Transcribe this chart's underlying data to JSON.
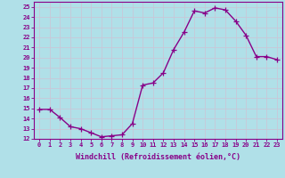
{
  "x": [
    0,
    1,
    2,
    3,
    4,
    5,
    6,
    7,
    8,
    9,
    10,
    11,
    12,
    13,
    14,
    15,
    16,
    17,
    18,
    19,
    20,
    21,
    22,
    23
  ],
  "y": [
    14.9,
    14.9,
    14.1,
    13.2,
    13.0,
    12.6,
    12.2,
    12.3,
    12.4,
    13.5,
    17.3,
    17.5,
    18.5,
    20.8,
    22.5,
    24.6,
    24.4,
    24.9,
    24.7,
    23.6,
    22.2,
    20.1,
    20.1,
    19.8
  ],
  "line_color": "#880088",
  "marker": "+",
  "marker_size": 4,
  "bg_color": "#b0e0e8",
  "grid_color": "#c8c8d8",
  "xlabel": "Windchill (Refroidissement éolien,°C)",
  "ylim": [
    12,
    25.5
  ],
  "xlim": [
    -0.5,
    23.5
  ],
  "yticks": [
    12,
    13,
    14,
    15,
    16,
    17,
    18,
    19,
    20,
    21,
    22,
    23,
    24,
    25
  ],
  "xticks": [
    0,
    1,
    2,
    3,
    4,
    5,
    6,
    7,
    8,
    9,
    10,
    11,
    12,
    13,
    14,
    15,
    16,
    17,
    18,
    19,
    20,
    21,
    22,
    23
  ],
  "label_fontsize": 6.0,
  "tick_fontsize": 5.0,
  "line_width": 1.0,
  "spine_color": "#880088"
}
